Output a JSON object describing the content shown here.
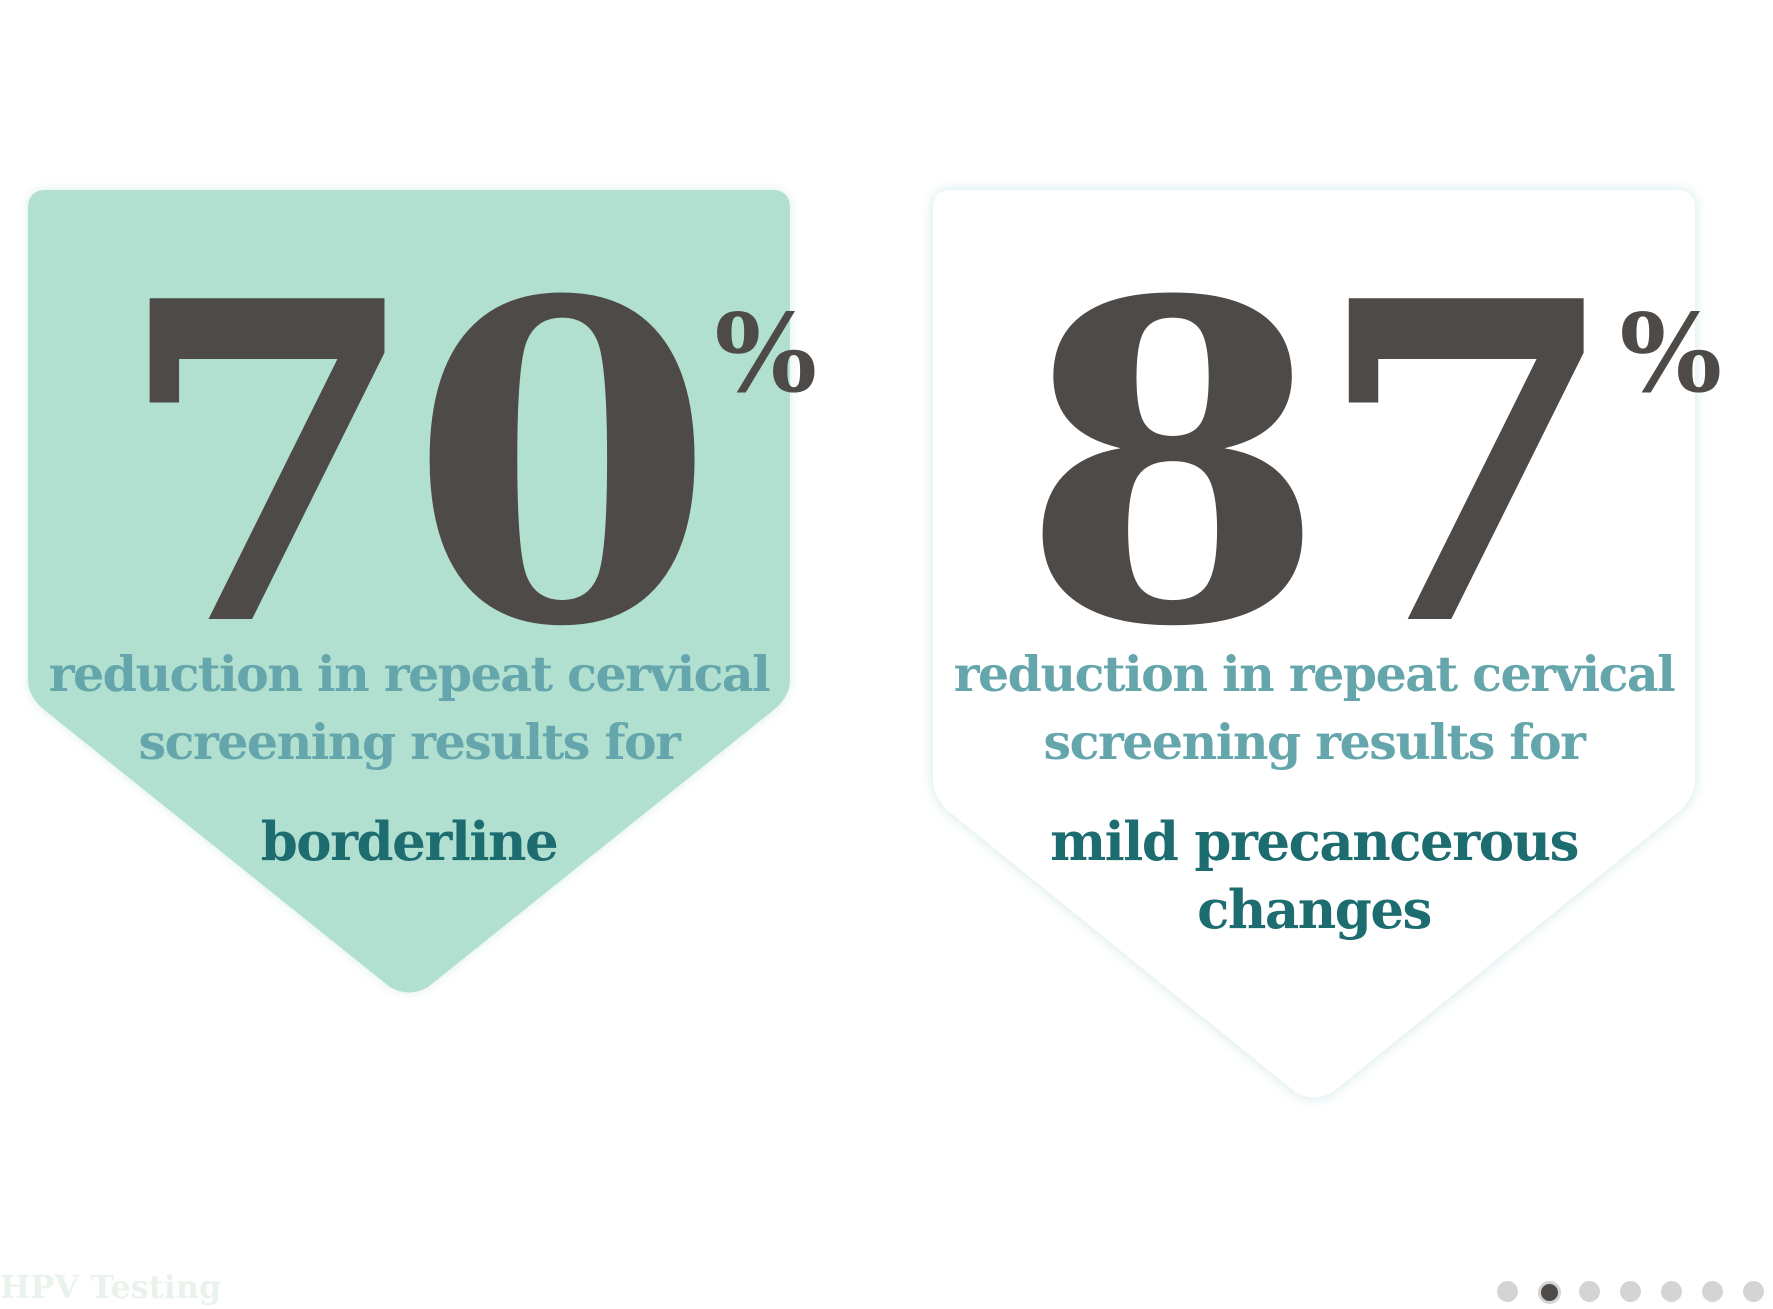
{
  "cards": [
    {
      "number": "70",
      "percent_sign": "%",
      "description_line1": "reduction in repeat cervical",
      "description_line2": "screening results for",
      "highlight_line1": "borderline",
      "highlight_line2": "",
      "fill_color": "#b1dfd0"
    },
    {
      "number": "87",
      "percent_sign": "%",
      "description_line1": "reduction in repeat cervical",
      "description_line2": "screening results for",
      "highlight_line1": "mild precancerous",
      "highlight_line2": "changes",
      "fill_color": "#ffffff"
    }
  ],
  "footer": {
    "title": "HPV Testing"
  },
  "pager": {
    "total_visible_dots": 7,
    "active_index": 1
  },
  "colors": {
    "number": "#4d4a47",
    "description": "#64a6ab",
    "highlight": "#1c6c70",
    "card_glow": "#cfe6e6"
  }
}
